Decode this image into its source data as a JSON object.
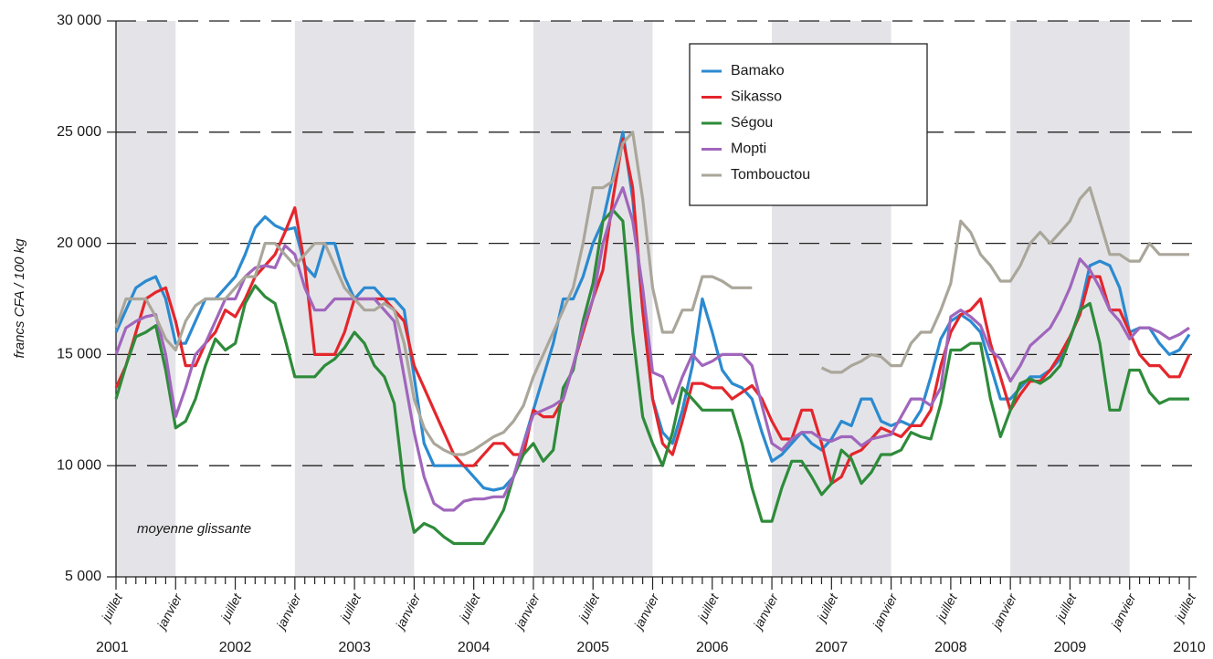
{
  "chart_data": {
    "type": "line",
    "y_label": "francs CFA / 100 kg",
    "annotation": "moyenne glissante",
    "categories": [
      "juillet",
      null,
      null,
      null,
      null,
      null,
      "janvier",
      null,
      null,
      null,
      null,
      null,
      "juillet",
      null,
      null,
      null,
      null,
      null,
      "janvier",
      null,
      null,
      null,
      null,
      null,
      "juillet",
      null,
      null,
      null,
      null,
      null,
      "janvier",
      null,
      null,
      null,
      null,
      null,
      "juillet",
      null,
      null,
      null,
      null,
      null,
      "janvier",
      null,
      null,
      null,
      null,
      null,
      "juillet",
      null,
      null,
      null,
      null,
      null,
      "janvier",
      null,
      null,
      null,
      null,
      null,
      "juillet",
      null,
      null,
      null,
      null,
      null,
      "janvier",
      null,
      null,
      null,
      null,
      null,
      "juillet",
      null,
      null,
      null,
      null,
      null,
      "janvier",
      null,
      null,
      null,
      null,
      null,
      "juillet",
      null,
      null,
      null,
      null,
      null,
      "janvier",
      null,
      null,
      null,
      null,
      null,
      "juillet",
      null,
      null,
      null,
      null,
      null,
      "janvier",
      null,
      null,
      null,
      null,
      null,
      "juillet"
    ],
    "years": [
      "2001",
      "2002",
      "2003",
      "2004",
      "2005",
      "2006",
      "2007",
      "2008",
      "2009",
      "2010"
    ],
    "ylim": [
      5000,
      30000
    ],
    "yticks": [
      {
        "value": 5000,
        "label": "5 000"
      },
      {
        "value": 10000,
        "label": "10 000"
      },
      {
        "value": 15000,
        "label": "15 000"
      },
      {
        "value": 20000,
        "label": "20 000"
      },
      {
        "value": 25000,
        "label": "25 000"
      },
      {
        "value": 30000,
        "label": "30 000"
      }
    ],
    "grid": true,
    "legend": "top",
    "series": [
      {
        "name": "Bamako",
        "color": "#2b8ad0",
        "values": [
          16000,
          17000,
          18000,
          18300,
          18500,
          17500,
          15500,
          15500,
          16500,
          17500,
          17500,
          18000,
          18500,
          19500,
          20700,
          21200,
          20800,
          20600,
          20700,
          19000,
          18500,
          20000,
          20000,
          18500,
          17500,
          18000,
          18000,
          17500,
          17500,
          17000,
          14000,
          11000,
          10000,
          10000,
          10000,
          10000,
          9500,
          9000,
          8900,
          9000,
          9500,
          11000,
          12500,
          14000,
          15500,
          17500,
          17500,
          18500,
          20000,
          21000,
          23000,
          25000,
          22000,
          17000,
          13000,
          11500,
          11000,
          12500,
          14500,
          17500,
          16000,
          14300,
          13700,
          13500,
          13000,
          11500,
          10200,
          10500,
          11000,
          11500,
          11000,
          10700,
          11200,
          12000,
          11800,
          13000,
          13000,
          12000,
          11800,
          12000,
          11800,
          12500,
          14000,
          15700,
          16500,
          16800,
          16500,
          16000,
          14500,
          13000,
          13000,
          13500,
          14000,
          14000,
          14300,
          14800,
          15700,
          17000,
          19000,
          19200,
          19000,
          18000,
          16000,
          16200,
          16200,
          15500,
          15000,
          15200,
          15900
        ]
      },
      {
        "name": "Sikasso",
        "color": "#e4262c",
        "values": [
          13500,
          14500,
          16000,
          17500,
          17800,
          18000,
          16500,
          14500,
          14500,
          15500,
          16000,
          17000,
          16700,
          17500,
          18500,
          19000,
          19500,
          20500,
          21600,
          19000,
          15000,
          15000,
          15000,
          16000,
          17500,
          17500,
          17500,
          17500,
          17000,
          16500,
          14500,
          13500,
          12500,
          11500,
          10500,
          10000,
          10000,
          10500,
          11000,
          11000,
          10500,
          10500,
          12500,
          12200,
          12200,
          13000,
          14500,
          16000,
          17500,
          18800,
          22000,
          24700,
          22500,
          17000,
          13000,
          11000,
          10500,
          12000,
          13700,
          13700,
          13500,
          13500,
          13000,
          13300,
          13600,
          13000,
          12000,
          11200,
          11200,
          12500,
          12500,
          11000,
          9200,
          9500,
          10500,
          10700,
          11200,
          11700,
          11500,
          11300,
          11800,
          11800,
          12500,
          14500,
          16000,
          16800,
          17000,
          17500,
          15500,
          14000,
          12500,
          13200,
          13800,
          13800,
          14300,
          15000,
          15800,
          16800,
          18500,
          18500,
          17000,
          17000,
          16000,
          15000,
          14500,
          14500,
          14000,
          14000,
          15000
        ]
      },
      {
        "name": "Ségou",
        "color": "#2e8b3a",
        "values": [
          13000,
          14500,
          15800,
          16000,
          16300,
          14300,
          11700,
          12000,
          13000,
          14500,
          15700,
          15200,
          15500,
          17300,
          18100,
          17600,
          17300,
          15700,
          14000,
          14000,
          14000,
          14500,
          14800,
          15300,
          16000,
          15500,
          14500,
          14000,
          12800,
          9000,
          7000,
          7400,
          7200,
          6800,
          6500,
          6500,
          6500,
          6500,
          7200,
          8000,
          9500,
          10500,
          11000,
          10200,
          10700,
          13500,
          14300,
          16500,
          18200,
          21000,
          21500,
          21000,
          16000,
          12200,
          11000,
          10000,
          11500,
          13500,
          13000,
          12500,
          12500,
          12500,
          12500,
          11000,
          9000,
          7500,
          7500,
          9000,
          10200,
          10200,
          9500,
          8700,
          9200,
          10700,
          10300,
          9200,
          9700,
          10500,
          10500,
          10700,
          11500,
          11300,
          11200,
          12800,
          15200,
          15200,
          15500,
          15500,
          13000,
          11300,
          12500,
          13700,
          13900,
          13700,
          14000,
          14500,
          15700,
          17000,
          17300,
          15500,
          12500,
          12500,
          14300,
          14300,
          13300,
          12800,
          13000,
          13000,
          13000
        ]
      },
      {
        "name": "Mopti",
        "color": "#a066bc",
        "values": [
          15000,
          16200,
          16500,
          16700,
          16800,
          15000,
          12200,
          13500,
          15000,
          15500,
          16500,
          17500,
          17500,
          18500,
          18900,
          19000,
          18900,
          19900,
          19500,
          18000,
          17000,
          17000,
          17500,
          17500,
          17500,
          17500,
          17500,
          17000,
          16500,
          14000,
          11500,
          9500,
          8300,
          8000,
          8000,
          8400,
          8500,
          8500,
          8600,
          8600,
          9500,
          11000,
          12300,
          12500,
          12700,
          13000,
          14500,
          16200,
          17500,
          20000,
          21500,
          22500,
          21000,
          18000,
          14200,
          14000,
          12800,
          14000,
          15000,
          14500,
          14700,
          15000,
          15000,
          15000,
          14500,
          12700,
          11000,
          10700,
          11200,
          11500,
          11500,
          11200,
          11100,
          11300,
          11300,
          10900,
          11200,
          11300,
          11400,
          12200,
          13000,
          13000,
          12700,
          13500,
          16700,
          17000,
          16700,
          16300,
          15200,
          14800,
          13800,
          14500,
          15400,
          15800,
          16200,
          17000,
          18000,
          19300,
          18800,
          18000,
          17000,
          16500,
          15700,
          16200,
          16200,
          16000,
          15700,
          15900,
          16200
        ]
      },
      {
        "name": "Tombouctou",
        "color": "#aaa69a",
        "values": [
          16200,
          17500,
          17500,
          17500,
          16700,
          15700,
          15200,
          16500,
          17200,
          17500,
          17500,
          17500,
          18000,
          18500,
          18500,
          20000,
          20000,
          19500,
          19000,
          19500,
          20000,
          20000,
          19000,
          18000,
          17500,
          17000,
          17000,
          17300,
          17000,
          15500,
          13000,
          11700,
          11000,
          10700,
          10500,
          10500,
          10700,
          11000,
          11300,
          11500,
          12000,
          12700,
          14000,
          15000,
          16000,
          17000,
          18000,
          20000,
          22500,
          22500,
          22800,
          24500,
          25000,
          22000,
          18000,
          16000,
          16000,
          17000,
          17000,
          18500,
          18500,
          18300,
          18000,
          18000,
          18000,
          null,
          null,
          null,
          null,
          null,
          null,
          14400,
          14200,
          14200,
          14500,
          14700,
          15000,
          14900,
          14500,
          14500,
          15500,
          16000,
          16000,
          17000,
          18200,
          21000,
          20500,
          19500,
          19000,
          18300,
          18300,
          19000,
          20000,
          20500,
          20000,
          20500,
          21000,
          22000,
          22500,
          21000,
          19500,
          19500,
          19200,
          19200,
          20000,
          19500,
          19500,
          19500,
          19500
        ]
      }
    ]
  }
}
